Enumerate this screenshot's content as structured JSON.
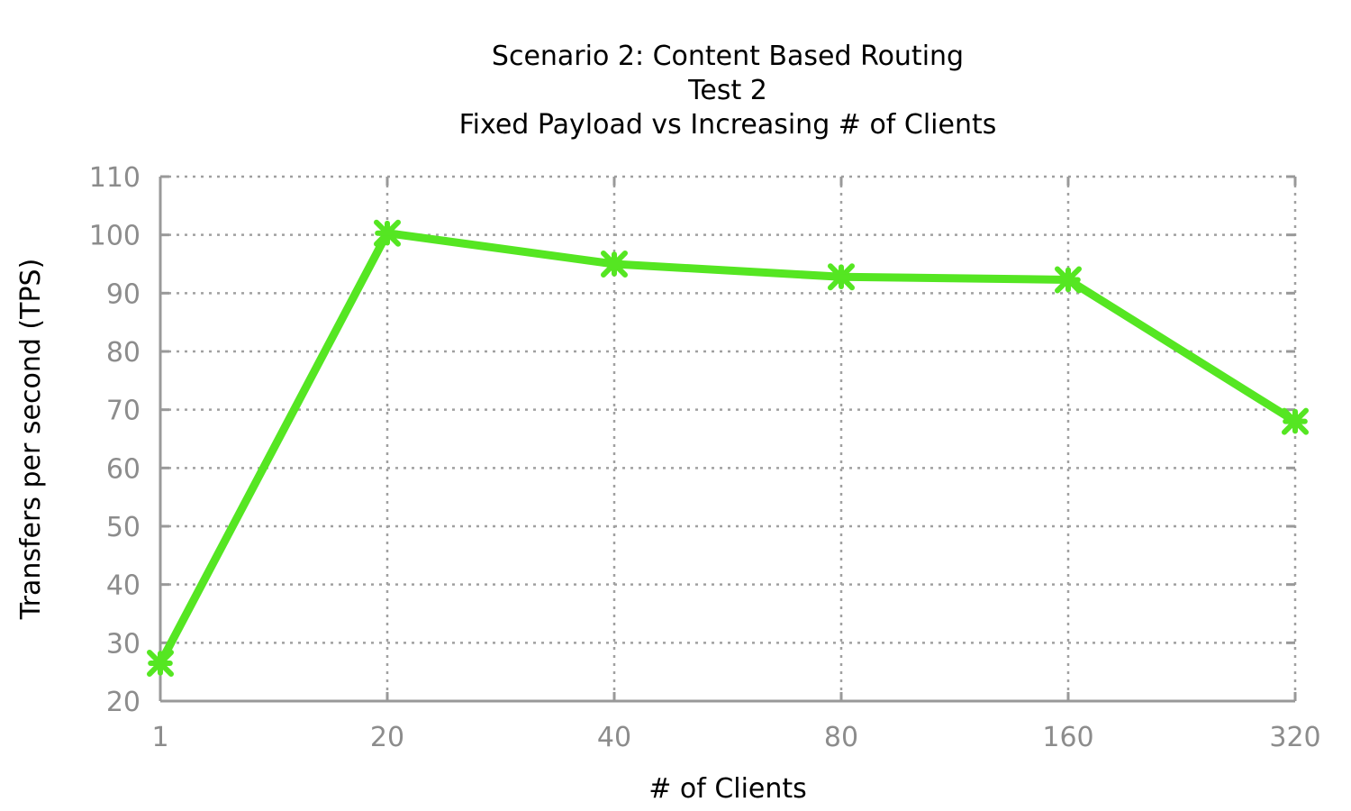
{
  "chart_data": {
    "type": "line",
    "title_lines": [
      "Scenario 2: Content Based Routing",
      "Test 2",
      "Fixed Payload vs Increasing # of Clients"
    ],
    "xlabel": "# of Clients",
    "ylabel": "Transfers per second (TPS)",
    "categories": [
      "1",
      "20",
      "40",
      "80",
      "160",
      "320"
    ],
    "ylim": [
      20,
      110
    ],
    "yticks": [
      20,
      30,
      40,
      50,
      60,
      70,
      80,
      90,
      100,
      110
    ],
    "grid": true,
    "series": [
      {
        "color": "#55e622",
        "marker": "star-cross",
        "values": [
          26.5,
          100.3,
          95.0,
          92.8,
          92.3,
          68.0
        ]
      }
    ]
  }
}
